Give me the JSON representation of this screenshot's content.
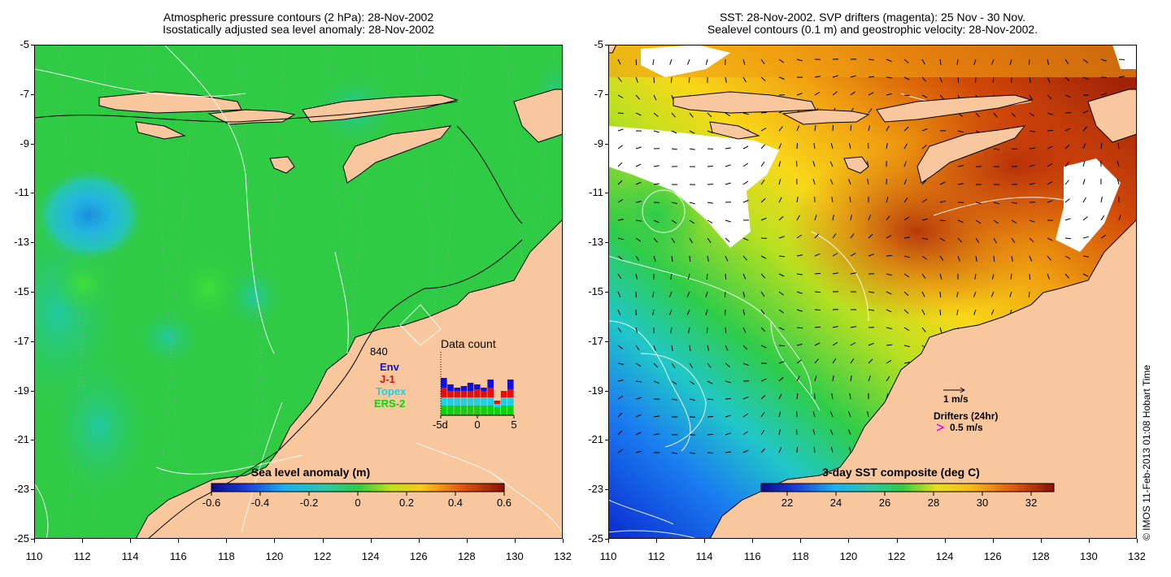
{
  "left_panel": {
    "title_line1": "Atmospheric pressure contours (2 hPa): 28-Nov-2002",
    "title_line2": "Isostatically adjusted sea level anomaly: 28-Nov-2002",
    "colorbar_label": "Sea level anomaly (m)",
    "colorbar_ticks": [
      "-0.6",
      "-0.4",
      "-0.2",
      "0",
      "0.2",
      "0.4",
      "0.6"
    ],
    "colors": {
      "ocean": "#2fcb44",
      "land": "#f9c79d",
      "low_anomaly": "#22a7e0"
    },
    "data_count": {
      "title": "Data count",
      "total": "840",
      "legend": [
        {
          "name": "Env",
          "color": "#1010e0"
        },
        {
          "name": "J-1",
          "color": "#e01010"
        },
        {
          "name": "Topex",
          "color": "#20d0e0"
        },
        {
          "name": "ERS-2",
          "color": "#10d010"
        }
      ],
      "x_ticks": [
        "-5d",
        "0",
        "5"
      ]
    }
  },
  "right_panel": {
    "title_line1": "SST: 28-Nov-2002. SVP drifters (magenta): 25 Nov - 30 Nov.",
    "title_line2": "Sealevel contours (0.1 m) and geostrophic velocity: 28-Nov-2002.",
    "colorbar_label": "3-day SST composite (deg C)",
    "colorbar_ticks": [
      "22",
      "24",
      "26",
      "28",
      "30",
      "32"
    ],
    "velocity_scale": "1 m/s",
    "drifter_title": "Drifters (24hr)",
    "drifter_scale": "0.5 m/s",
    "colors": {
      "land": "#f9c79d",
      "drifter": "#e000e0"
    }
  },
  "axes": {
    "lat_ticks": [
      "-5",
      "-7",
      "-9",
      "-11",
      "-13",
      "-15",
      "-17",
      "-19",
      "-21",
      "-23",
      "-25"
    ],
    "lon_ticks": [
      "110",
      "112",
      "114",
      "116",
      "118",
      "120",
      "122",
      "124",
      "126",
      "128",
      "130",
      "132"
    ]
  },
  "copyright": "© IMOS 11-Feb-2013 01:08 Hobart Time"
}
